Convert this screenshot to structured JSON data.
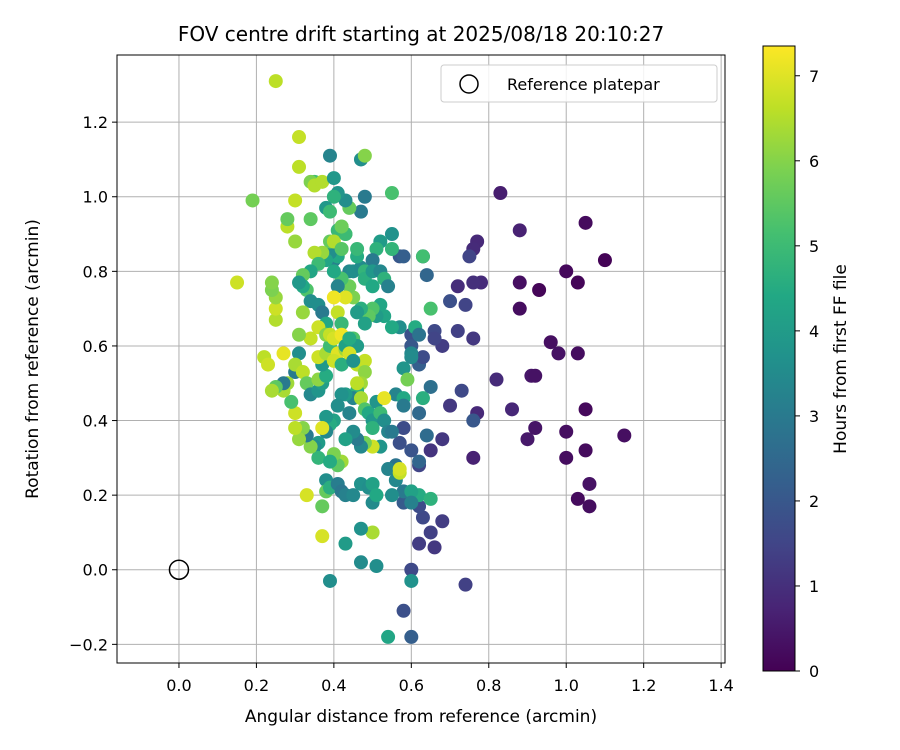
{
  "chart_data": {
    "type": "scatter",
    "title": "FOV centre drift starting at 2025/08/18 20:10:27",
    "xlabel": "Angular distance from reference (arcmin)",
    "ylabel": "Rotation from reference (arcmin)",
    "xlim": [
      -0.16,
      1.41
    ],
    "ylim": [
      -0.25,
      1.38
    ],
    "xticks": [
      "0.0",
      "0.2",
      "0.4",
      "0.6",
      "0.8",
      "1.0",
      "1.2",
      "1.4"
    ],
    "yticks": [
      "−0.2",
      "0.0",
      "0.2",
      "0.4",
      "0.6",
      "0.8",
      "1.0",
      "1.2"
    ],
    "grid": true,
    "legend": {
      "placement": "top-right",
      "entries": [
        "Reference platepar"
      ]
    },
    "reference_point": {
      "x": 0.0,
      "y": 0.0
    },
    "colorbar": {
      "label": "Hours from first FF file",
      "range": [
        0,
        7.35
      ],
      "ticks": [
        "0",
        "1",
        "2",
        "3",
        "4",
        "5",
        "6",
        "7"
      ],
      "colormap": "viridis"
    },
    "points": [
      [
        1.1,
        0.83,
        0.05
      ],
      [
        1.05,
        0.93,
        0.2
      ],
      [
        1.0,
        0.8,
        0.15
      ],
      [
        1.03,
        0.77,
        0.1
      ],
      [
        0.93,
        0.75,
        0.1
      ],
      [
        0.88,
        0.77,
        0.3
      ],
      [
        0.88,
        0.7,
        0.25
      ],
      [
        0.96,
        0.61,
        0.3
      ],
      [
        0.98,
        0.58,
        0.35
      ],
      [
        1.03,
        0.58,
        0.25
      ],
      [
        0.91,
        0.52,
        0.45
      ],
      [
        0.92,
        0.52,
        0.35
      ],
      [
        1.05,
        0.43,
        0.15
      ],
      [
        1.0,
        0.37,
        0.3
      ],
      [
        1.15,
        0.36,
        0.3
      ],
      [
        0.92,
        0.38,
        0.4
      ],
      [
        0.9,
        0.35,
        0.5
      ],
      [
        1.05,
        0.32,
        0.2
      ],
      [
        1.0,
        0.3,
        0.25
      ],
      [
        1.06,
        0.23,
        0.35
      ],
      [
        1.03,
        0.19,
        0.2
      ],
      [
        1.06,
        0.17,
        0.25
      ],
      [
        0.83,
        1.01,
        0.6
      ],
      [
        0.88,
        0.91,
        0.7
      ],
      [
        0.77,
        0.88,
        0.85
      ],
      [
        0.76,
        0.86,
        0.9
      ],
      [
        0.78,
        0.77,
        0.9
      ],
      [
        0.76,
        0.77,
        1.0
      ],
      [
        0.72,
        0.76,
        0.95
      ],
      [
        0.82,
        0.51,
        0.9
      ],
      [
        0.86,
        0.43,
        0.8
      ],
      [
        0.77,
        0.42,
        0.85
      ],
      [
        0.76,
        0.3,
        0.7
      ],
      [
        0.75,
        0.84,
        1.5
      ],
      [
        0.74,
        0.71,
        1.5
      ],
      [
        0.7,
        0.72,
        1.8
      ],
      [
        0.73,
        0.48,
        1.6
      ],
      [
        0.76,
        0.4,
        2.0
      ],
      [
        0.76,
        0.62,
        1.2
      ],
      [
        0.72,
        0.64,
        1.4
      ],
      [
        0.66,
        0.64,
        1.6
      ],
      [
        0.68,
        0.6,
        1.3
      ],
      [
        0.66,
        0.62,
        1.5
      ],
      [
        0.7,
        0.44,
        1.2
      ],
      [
        0.68,
        0.35,
        1.2
      ],
      [
        0.68,
        0.13,
        1.3
      ],
      [
        0.65,
        0.32,
        1.1
      ],
      [
        0.65,
        0.1,
        1.4
      ],
      [
        0.66,
        0.06,
        1.2
      ],
      [
        0.62,
        0.07,
        1.3
      ],
      [
        0.6,
        0.0,
        1.6
      ],
      [
        0.58,
        -0.11,
        1.8
      ],
      [
        0.6,
        -0.18,
        2.2
      ],
      [
        0.74,
        -0.04,
        1.4
      ],
      [
        0.62,
        0.28,
        1.5
      ],
      [
        0.6,
        0.32,
        1.9
      ],
      [
        0.57,
        0.34,
        1.8
      ],
      [
        0.63,
        0.14,
        1.6
      ],
      [
        0.62,
        0.17,
        1.7
      ],
      [
        0.58,
        0.18,
        2.1
      ],
      [
        0.58,
        0.38,
        1.7
      ],
      [
        0.62,
        0.42,
        2.5
      ],
      [
        0.6,
        0.63,
        1.8
      ],
      [
        0.62,
        0.55,
        2.2
      ],
      [
        0.6,
        0.6,
        2.0
      ],
      [
        0.63,
        0.57,
        1.7
      ],
      [
        0.63,
        0.84,
        1.6
      ],
      [
        0.64,
        0.79,
        2.4
      ],
      [
        0.65,
        0.49,
        2.7
      ],
      [
        0.64,
        0.36,
        2.6
      ],
      [
        0.56,
        0.28,
        2.8
      ],
      [
        0.58,
        0.21,
        3.0
      ],
      [
        0.62,
        0.2,
        4.5
      ],
      [
        0.55,
        0.2,
        3.6
      ],
      [
        0.56,
        0.47,
        3.3
      ],
      [
        0.58,
        0.46,
        4.4
      ],
      [
        0.56,
        0.24,
        3.4
      ],
      [
        0.63,
        0.84,
        5.1
      ],
      [
        0.65,
        0.7,
        5.2
      ],
      [
        0.61,
        0.65,
        4.5
      ],
      [
        0.6,
        0.58,
        3.4
      ],
      [
        0.62,
        0.63,
        2.8
      ],
      [
        0.57,
        0.84,
        2.0
      ],
      [
        0.58,
        0.84,
        2.2
      ],
      [
        0.57,
        0.65,
        3.6
      ],
      [
        0.55,
        0.65,
        4.4
      ],
      [
        0.53,
        0.68,
        4.3
      ],
      [
        0.55,
        0.86,
        4.8
      ],
      [
        0.55,
        0.9,
        3.7
      ],
      [
        0.52,
        0.88,
        4.0
      ],
      [
        0.51,
        0.86,
        4.7
      ],
      [
        0.5,
        0.83,
        3.0
      ],
      [
        0.55,
        1.01,
        5.2
      ],
      [
        0.47,
        1.1,
        3.6
      ],
      [
        0.48,
        1.11,
        6.0
      ],
      [
        0.48,
        1.0,
        3.0
      ],
      [
        0.47,
        0.96,
        3.0
      ],
      [
        0.44,
        0.97,
        5.6
      ],
      [
        0.43,
        0.99,
        3.6
      ],
      [
        0.41,
        1.01,
        3.8
      ],
      [
        0.4,
        1.0,
        4.7
      ],
      [
        0.39,
        1.11,
        3.3
      ],
      [
        0.38,
        0.97,
        3.9
      ],
      [
        0.39,
        0.96,
        5.0
      ],
      [
        0.41,
        0.91,
        4.9
      ],
      [
        0.42,
        0.92,
        5.3
      ],
      [
        0.43,
        0.9,
        5.6
      ],
      [
        0.44,
        0.8,
        3.4
      ],
      [
        0.45,
        0.8,
        3.6
      ],
      [
        0.47,
        0.81,
        3.5
      ],
      [
        0.46,
        0.84,
        4.5
      ],
      [
        0.46,
        0.86,
        4.9
      ],
      [
        0.48,
        0.8,
        4.8
      ],
      [
        0.48,
        0.78,
        4.6
      ],
      [
        0.5,
        0.76,
        4.4
      ],
      [
        0.5,
        0.8,
        3.9
      ],
      [
        0.52,
        0.8,
        3.4
      ],
      [
        0.53,
        0.78,
        4.7
      ],
      [
        0.54,
        0.76,
        3.2
      ],
      [
        0.52,
        0.71,
        4.3
      ],
      [
        0.51,
        0.68,
        4.0
      ],
      [
        0.5,
        0.7,
        5.3
      ],
      [
        0.49,
        0.68,
        5.5
      ],
      [
        0.48,
        0.66,
        4.2
      ],
      [
        0.47,
        0.7,
        4.6
      ],
      [
        0.46,
        0.69,
        4.0
      ],
      [
        0.45,
        0.73,
        5.9
      ],
      [
        0.44,
        0.76,
        5.7
      ],
      [
        0.42,
        0.78,
        5.2
      ],
      [
        0.41,
        0.76,
        3.3
      ],
      [
        0.4,
        0.83,
        3.2
      ],
      [
        0.41,
        0.84,
        4.4
      ],
      [
        0.4,
        0.8,
        4.4
      ],
      [
        0.39,
        0.85,
        3.6
      ],
      [
        0.38,
        0.83,
        4.3
      ],
      [
        0.39,
        0.88,
        5.6
      ],
      [
        0.4,
        0.88,
        6.5
      ],
      [
        0.42,
        0.86,
        5.4
      ],
      [
        0.43,
        0.9,
        5.0
      ],
      [
        0.35,
        1.04,
        5.1
      ],
      [
        0.37,
        0.85,
        6.2
      ],
      [
        0.35,
        0.85,
        6.5
      ],
      [
        0.36,
        0.82,
        5.0
      ],
      [
        0.34,
        0.8,
        4.3
      ],
      [
        0.33,
        0.75,
        5.3
      ],
      [
        0.32,
        0.79,
        5.6
      ],
      [
        0.32,
        0.76,
        4.4
      ],
      [
        0.31,
        0.77,
        3.9
      ],
      [
        0.34,
        0.72,
        3.6
      ],
      [
        0.36,
        0.71,
        3.6
      ],
      [
        0.37,
        0.69,
        3.0
      ],
      [
        0.38,
        0.66,
        4.4
      ],
      [
        0.36,
        0.65,
        6.8
      ],
      [
        0.34,
        0.62,
        6.7
      ],
      [
        0.32,
        0.69,
        6.2
      ],
      [
        0.31,
        0.63,
        6.0
      ],
      [
        0.31,
        0.58,
        3.6
      ],
      [
        0.3,
        0.53,
        3.0
      ],
      [
        0.3,
        0.55,
        6.4
      ],
      [
        0.32,
        0.53,
        6.6
      ],
      [
        0.33,
        0.5,
        5.6
      ],
      [
        0.34,
        0.47,
        3.4
      ],
      [
        0.36,
        0.48,
        3.8
      ],
      [
        0.37,
        0.5,
        4.1
      ],
      [
        0.36,
        0.51,
        6.1
      ],
      [
        0.38,
        0.52,
        4.5
      ],
      [
        0.37,
        0.55,
        3.9
      ],
      [
        0.36,
        0.57,
        6.8
      ],
      [
        0.38,
        0.58,
        6.4
      ],
      [
        0.39,
        0.6,
        5.0
      ],
      [
        0.38,
        0.63,
        6.0
      ],
      [
        0.39,
        0.63,
        6.7
      ],
      [
        0.4,
        0.62,
        6.9
      ],
      [
        0.41,
        0.58,
        7.0
      ],
      [
        0.4,
        0.56,
        6.8
      ],
      [
        0.42,
        0.55,
        4.6
      ],
      [
        0.43,
        0.59,
        6.3
      ],
      [
        0.44,
        0.62,
        6.5
      ],
      [
        0.45,
        0.62,
        5.3
      ],
      [
        0.46,
        0.6,
        4.0
      ],
      [
        0.46,
        0.55,
        6.6
      ],
      [
        0.48,
        0.56,
        6.7
      ],
      [
        0.48,
        0.53,
        6.1
      ],
      [
        0.47,
        0.5,
        6.3
      ],
      [
        0.46,
        0.48,
        4.7
      ],
      [
        0.45,
        0.46,
        3.3
      ],
      [
        0.44,
        0.42,
        3.3
      ],
      [
        0.43,
        0.47,
        4.0
      ],
      [
        0.42,
        0.47,
        3.7
      ],
      [
        0.41,
        0.44,
        3.6
      ],
      [
        0.4,
        0.4,
        4.2
      ],
      [
        0.39,
        0.39,
        4.5
      ],
      [
        0.38,
        0.41,
        3.9
      ],
      [
        0.38,
        0.37,
        3.4
      ],
      [
        0.37,
        0.38,
        7.0
      ],
      [
        0.36,
        0.34,
        4.0
      ],
      [
        0.35,
        0.33,
        3.6
      ],
      [
        0.36,
        0.3,
        4.8
      ],
      [
        0.34,
        0.33,
        6.0
      ],
      [
        0.33,
        0.36,
        3.0
      ],
      [
        0.32,
        0.38,
        6.0
      ],
      [
        0.31,
        0.35,
        6.2
      ],
      [
        0.3,
        0.38,
        6.6
      ],
      [
        0.3,
        0.42,
        6.8
      ],
      [
        0.29,
        0.45,
        5.2
      ],
      [
        0.28,
        0.5,
        6.3
      ],
      [
        0.27,
        0.48,
        6.4
      ],
      [
        0.27,
        0.5,
        3.0
      ],
      [
        0.25,
        0.49,
        5.5
      ],
      [
        0.24,
        0.48,
        6.4
      ],
      [
        0.22,
        0.57,
        6.6
      ],
      [
        0.23,
        0.55,
        6.8
      ],
      [
        0.27,
        0.58,
        7.1
      ],
      [
        0.25,
        0.67,
        6.5
      ],
      [
        0.25,
        0.7,
        6.8
      ],
      [
        0.25,
        0.73,
        6.2
      ],
      [
        0.24,
        0.75,
        5.9
      ],
      [
        0.24,
        0.77,
        6.0
      ],
      [
        0.15,
        0.77,
        6.8
      ],
      [
        0.19,
        0.99,
        5.8
      ],
      [
        0.28,
        0.92,
        6.6
      ],
      [
        0.28,
        0.94,
        5.6
      ],
      [
        0.3,
        0.88,
        6.2
      ],
      [
        0.3,
        0.99,
        6.7
      ],
      [
        0.31,
        1.08,
        6.6
      ],
      [
        0.31,
        1.16,
        6.7
      ],
      [
        0.25,
        1.31,
        6.6
      ],
      [
        0.34,
        0.94,
        5.5
      ],
      [
        0.34,
        1.04,
        5.9
      ],
      [
        0.35,
        1.03,
        6.5
      ],
      [
        0.37,
        1.04,
        6.5
      ],
      [
        0.4,
        1.05,
        3.9
      ],
      [
        0.42,
        0.92,
        5.7
      ],
      [
        0.43,
        0.73,
        7.0
      ],
      [
        0.4,
        0.73,
        7.2
      ],
      [
        0.41,
        0.69,
        6.7
      ],
      [
        0.42,
        0.66,
        4.9
      ],
      [
        0.42,
        0.63,
        7.2
      ],
      [
        0.43,
        0.6,
        4.2
      ],
      [
        0.44,
        0.62,
        4.5
      ],
      [
        0.44,
        0.58,
        6.9
      ],
      [
        0.45,
        0.56,
        3.7
      ],
      [
        0.46,
        0.5,
        6.6
      ],
      [
        0.47,
        0.46,
        6.4
      ],
      [
        0.48,
        0.43,
        5.3
      ],
      [
        0.49,
        0.42,
        4.4
      ],
      [
        0.5,
        0.4,
        3.9
      ],
      [
        0.5,
        0.38,
        4.7
      ],
      [
        0.51,
        0.45,
        3.8
      ],
      [
        0.52,
        0.42,
        5.0
      ],
      [
        0.53,
        0.46,
        7.1
      ],
      [
        0.53,
        0.4,
        3.6
      ],
      [
        0.54,
        0.37,
        3.3
      ],
      [
        0.55,
        0.37,
        3.0
      ],
      [
        0.52,
        0.33,
        3.8
      ],
      [
        0.5,
        0.33,
        6.8
      ],
      [
        0.48,
        0.34,
        5.8
      ],
      [
        0.47,
        0.33,
        3.4
      ],
      [
        0.46,
        0.35,
        3.0
      ],
      [
        0.45,
        0.37,
        3.5
      ],
      [
        0.43,
        0.35,
        4.2
      ],
      [
        0.42,
        0.29,
        6.3
      ],
      [
        0.41,
        0.28,
        5.5
      ],
      [
        0.4,
        0.31,
        5.9
      ],
      [
        0.39,
        0.29,
        4.5
      ],
      [
        0.38,
        0.24,
        3.6
      ],
      [
        0.38,
        0.21,
        5.6
      ],
      [
        0.39,
        0.22,
        4.6
      ],
      [
        0.41,
        0.23,
        3.1
      ],
      [
        0.42,
        0.21,
        2.9
      ],
      [
        0.43,
        0.2,
        3.2
      ],
      [
        0.45,
        0.2,
        3.4
      ],
      [
        0.47,
        0.23,
        3.7
      ],
      [
        0.49,
        0.22,
        3.6
      ],
      [
        0.5,
        0.23,
        4.2
      ],
      [
        0.5,
        0.18,
        3.5
      ],
      [
        0.51,
        0.2,
        4.4
      ],
      [
        0.5,
        0.1,
        6.4
      ],
      [
        0.47,
        0.11,
        3.7
      ],
      [
        0.43,
        0.07,
        4.0
      ],
      [
        0.37,
        0.09,
        6.9
      ],
      [
        0.37,
        0.17,
        5.6
      ],
      [
        0.33,
        0.2,
        6.9
      ],
      [
        0.39,
        -0.03,
        3.6
      ],
      [
        0.47,
        0.02,
        3.5
      ],
      [
        0.51,
        0.01,
        3.6
      ],
      [
        0.54,
        -0.18,
        4.3
      ],
      [
        0.6,
        -0.03,
        3.7
      ],
      [
        0.54,
        0.27,
        3.3
      ],
      [
        0.57,
        0.26,
        6.7
      ],
      [
        0.57,
        0.27,
        6.9
      ],
      [
        0.6,
        0.21,
        4.2
      ],
      [
        0.65,
        0.19,
        4.7
      ],
      [
        0.6,
        0.18,
        3.2
      ],
      [
        0.62,
        0.29,
        2.4
      ],
      [
        0.58,
        0.44,
        3.0
      ],
      [
        0.63,
        0.46,
        4.6
      ],
      [
        0.6,
        0.57,
        3.5
      ],
      [
        0.58,
        0.54,
        3.8
      ],
      [
        0.59,
        0.51,
        5.8
      ]
    ]
  }
}
